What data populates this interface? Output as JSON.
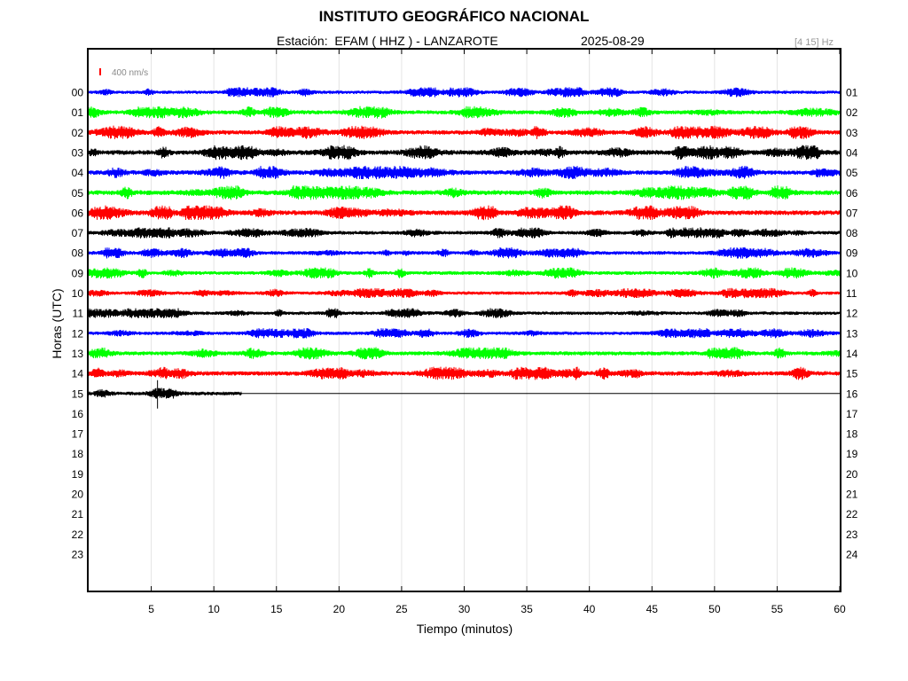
{
  "header": {
    "title": "INSTITUTO GEOGRÁFICO NACIONAL",
    "station_prefix": "Estación:",
    "station": "EFAM ( HHZ ) - LANZAROTE",
    "date": "2025-08-29",
    "filter": "[4 15] Hz"
  },
  "chart_data": {
    "type": "line",
    "xlabel": "Tiempo (minutos)",
    "ylabel": "Horas (UTC)",
    "xlim": [
      0,
      60
    ],
    "x_ticks": [
      5,
      10,
      15,
      20,
      25,
      30,
      35,
      40,
      45,
      50,
      55,
      60
    ],
    "left_labels": [
      "00",
      "01",
      "02",
      "03",
      "04",
      "05",
      "06",
      "07",
      "08",
      "09",
      "10",
      "11",
      "12",
      "13",
      "14",
      "15",
      "16",
      "17",
      "18",
      "19",
      "20",
      "21",
      "22",
      "23"
    ],
    "right_labels": [
      "01",
      "02",
      "03",
      "04",
      "05",
      "06",
      "07",
      "08",
      "09",
      "10",
      "11",
      "12",
      "13",
      "14",
      "15",
      "16",
      "17",
      "18",
      "19",
      "20",
      "21",
      "22",
      "23",
      "24"
    ],
    "scale_bar": {
      "label": "400 nm/s",
      "color": "#ff0000"
    },
    "trace_colors": [
      "#0000ff",
      "#00ff00",
      "#ff0000",
      "#000000"
    ],
    "grid": true,
    "traces": [
      {
        "hour": 0,
        "color": "#0000ff",
        "end_minute": 60,
        "amplitude": 4.5
      },
      {
        "hour": 1,
        "color": "#00ff00",
        "end_minute": 60,
        "amplitude": 5.5
      },
      {
        "hour": 2,
        "color": "#ff0000",
        "end_minute": 60,
        "amplitude": 6
      },
      {
        "hour": 3,
        "color": "#000000",
        "end_minute": 60,
        "amplitude": 6.5
      },
      {
        "hour": 4,
        "color": "#0000ff",
        "end_minute": 60,
        "amplitude": 6
      },
      {
        "hour": 5,
        "color": "#00ff00",
        "end_minute": 60,
        "amplitude": 6.5
      },
      {
        "hour": 6,
        "color": "#ff0000",
        "end_minute": 60,
        "amplitude": 6.5
      },
      {
        "hour": 7,
        "color": "#000000",
        "end_minute": 60,
        "amplitude": 5
      },
      {
        "hour": 8,
        "color": "#0000ff",
        "end_minute": 60,
        "amplitude": 5
      },
      {
        "hour": 9,
        "color": "#00ff00",
        "end_minute": 60,
        "amplitude": 5
      },
      {
        "hour": 10,
        "color": "#ff0000",
        "end_minute": 60,
        "amplitude": 4.5
      },
      {
        "hour": 11,
        "color": "#000000",
        "end_minute": 60,
        "amplitude": 4.5
      },
      {
        "hour": 12,
        "color": "#0000ff",
        "end_minute": 60,
        "amplitude": 4.5
      },
      {
        "hour": 13,
        "color": "#00ff00",
        "end_minute": 60,
        "amplitude": 5.5
      },
      {
        "hour": 14,
        "color": "#ff0000",
        "end_minute": 60,
        "amplitude": 6
      },
      {
        "hour": 15,
        "color": "#000000",
        "end_minute": 12.2,
        "amplitude": 5
      }
    ]
  }
}
